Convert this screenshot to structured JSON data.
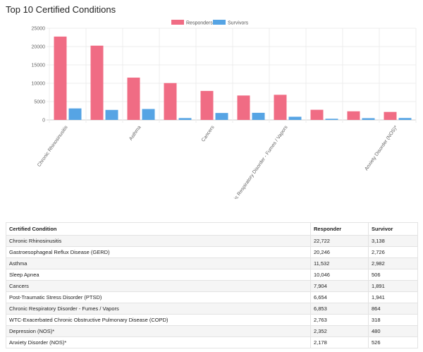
{
  "page": {
    "title": "Top 10 Certified Conditions"
  },
  "colors": {
    "responders": "#f06c84",
    "survivors": "#56a4e4"
  },
  "chart_data": {
    "type": "bar",
    "categories": [
      "Chronic Rhinosinusitis",
      "Gastroesophageal Reflux Disease (GERD)",
      "Asthma",
      "Sleep Apnea",
      "Cancers",
      "Post-Traumatic Stress Disorder (PTSD)",
      "Chronic Respiratory Disorder - Fumes / Vapors",
      "WTC-Exacerbated Chronic Obstructive Pulmonary Disease (COPD)",
      "Depression (NOS)*",
      "Anxiety Disorder (NOS)*"
    ],
    "x_tick_labels": [
      "Chronic Rhinosinusitis",
      "",
      "Asthma",
      "",
      "Cancers",
      "",
      "Chronic Respiratory Disorder - Fumes / Vapors",
      "",
      "",
      "Anxiety Disorder (NOS)*"
    ],
    "series": [
      {
        "name": "Responders",
        "values": [
          22722,
          20246,
          11532,
          10046,
          7904,
          6654,
          6853,
          2763,
          2352,
          2178
        ]
      },
      {
        "name": "Survivors",
        "values": [
          3138,
          2726,
          2982,
          506,
          1891,
          1941,
          864,
          318,
          480,
          526
        ]
      }
    ],
    "ylim": [
      0,
      25000
    ],
    "y_ticks": [
      "0",
      "5000",
      "10000",
      "15000",
      "20000",
      "25000"
    ],
    "legend": "top-center",
    "grid": true
  },
  "table": {
    "headers": [
      "Certified Condition",
      "Responder",
      "Survivor"
    ],
    "rows": [
      [
        "Chronic Rhinosinusitis",
        "22,722",
        "3,138"
      ],
      [
        "Gastroesophageal Reflux Disease (GERD)",
        "20,246",
        "2,726"
      ],
      [
        "Asthma",
        "11,532",
        "2,982"
      ],
      [
        "Sleep Apnea",
        "10,046",
        "506"
      ],
      [
        "Cancers",
        "7,904",
        "1,891"
      ],
      [
        "Post-Traumatic Stress Disorder (PTSD)",
        "6,654",
        "1,941"
      ],
      [
        "Chronic Respiratory Disorder - Fumes / Vapors",
        "6,853",
        "864"
      ],
      [
        "WTC-Exacerbated Chronic Obstructive Pulmonary Disease (COPD)",
        "2,763",
        "318"
      ],
      [
        "Depression (NOS)*",
        "2,352",
        "480"
      ],
      [
        "Anxiety Disorder (NOS)*",
        "2,178",
        "526"
      ]
    ]
  }
}
